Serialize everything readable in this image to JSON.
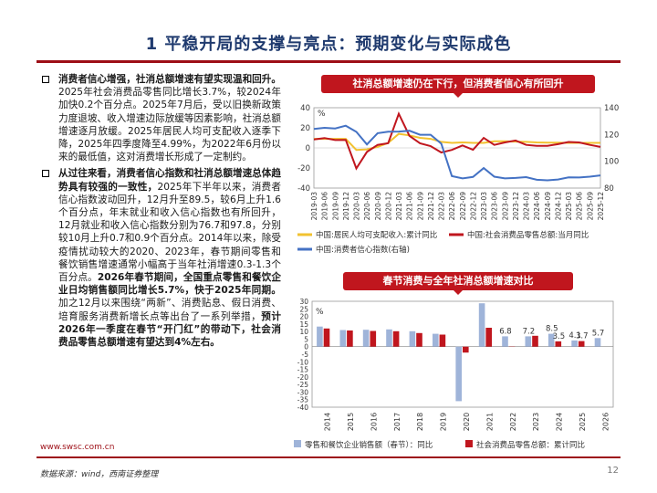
{
  "title": "1 平稳开局的支撑与亮点：预期变化与实际成色",
  "paragraphs": [
    {
      "lead": "消费者信心增强，社消总额增速有望实现温和回升。",
      "body": "2025年社会消费品零售同比增长3.7%，较2024年加快0.2个百分点。2025年7月后，受以旧换新政策力度退坡、收入增速边际放缓等因素影响，社消总额增速逐月放缓。2025年居民人均可支配收入逐季下降，2025年四季度降至4.99%，为2022年6月份以来的最低值，这对消费增长形成了一定制约。"
    },
    {
      "lead": "从过往来看，消费者信心指数和社消总额增速总体趋势具有较强的一致性，",
      "body": "2025年下半年以来，消费者信心指数波动回升，12月升至89.5，较6月上升1.6个百分点，年末就业和收入信心指数也有所回升，12月就业和收入信心指数分别为76.7和97.8，分别较10月上升0.7和0.9个百分点。2014年以来，除受疫情扰动较大的2020、2023年，春节期间零售和餐饮销售增速通常小幅高于当年社消增速0.3-1.3个百分点。",
      "bold2": "2026年春节期间，全国重点零售和餐饮企业日均销售额同比增长5.7%，快于2025年同期。",
      "body2": "加之12月以来围绕“两新”、消费贴息、假日消费、培育服务消费新增长点等出台了一系列举措，",
      "bold3": "预计2026年一季度在春节“开门红”的带动下，社会消费品零售总额增速有望达到4%左右。"
    }
  ],
  "footer": {
    "url": "www.swsc.com.cn",
    "source": "数据来源：wind，西南证券整理",
    "page": "12"
  },
  "colors": {
    "accent": "#c0161e",
    "title": "#1f3a6e",
    "yellow": "#f2c230",
    "blue": "#4472c4",
    "bar_blue": "#9fb4d9",
    "bar_red": "#c0161e"
  },
  "chart_data": [
    {
      "type": "line",
      "title": "社消总额增速仍在下行，但消费者信心有所回升",
      "ylabel_left": "%",
      "ylim_left": [
        -40,
        40
      ],
      "ylim_right": [
        80,
        140
      ],
      "yticks_left": [
        "40",
        "20",
        "0",
        "-20",
        "-40"
      ],
      "yticks_right": [
        "140",
        "120",
        "100",
        "80"
      ],
      "xtick_labels": [
        "2019-03",
        "2019-06",
        "2019-09",
        "2019-12",
        "2020-03",
        "2020-06",
        "2020-09",
        "2020-12",
        "2021-03",
        "2021-06",
        "2021-09",
        "2021-12",
        "2022-03",
        "2022-06",
        "2022-09",
        "2022-12",
        "2023-03",
        "2023-06",
        "2023-09",
        "2023-12",
        "2024-03",
        "2024-06",
        "2024-09",
        "2024-12",
        "2025-03",
        "2025-06",
        "2025-09",
        "2025-12"
      ],
      "series": [
        {
          "name": "中国:居民人均可支配收入:累计同比",
          "axis": "left",
          "color": "#f2c230",
          "values": [
            9.0,
            9.0,
            9.0,
            9.0,
            -2.0,
            -1.5,
            1.0,
            5.0,
            14.0,
            12.5,
            10.0,
            9.0,
            6.0,
            5.0,
            5.5,
            5.0,
            5.0,
            6.5,
            6.5,
            6.3,
            6.0,
            5.5,
            5.2,
            5.3,
            5.0,
            5.0,
            5.0,
            5.0
          ]
        },
        {
          "name": "中国:社会消费品零售总额:当月同比",
          "axis": "left",
          "color": "#c0161e",
          "values": [
            8.5,
            9.8,
            7.8,
            8.0,
            -20.5,
            -4.0,
            3.0,
            4.6,
            34.0,
            12.0,
            4.5,
            1.8,
            -4.5,
            -2.0,
            2.5,
            -1.8,
            10.0,
            3.0,
            5.5,
            7.4,
            3.0,
            2.0,
            2.1,
            3.7,
            5.9,
            5.5,
            3.0,
            1.0
          ]
        },
        {
          "name": "中国:消费者信心指数(右轴)",
          "axis": "right",
          "color": "#4472c4",
          "values": [
            124.1,
            125.0,
            124.5,
            126.6,
            122.0,
            112.6,
            121.0,
            122.1,
            122.2,
            122.8,
            119.8,
            119.8,
            113.2,
            88.9,
            87.2,
            88.3,
            94.9,
            88.5,
            87.2,
            87.6,
            88.2,
            86.2,
            85.8,
            86.4,
            88.0,
            87.9,
            88.5,
            89.5
          ]
        }
      ]
    },
    {
      "type": "bar",
      "title": "春节消费与全年社消总额增速对比",
      "ylabel": "%",
      "ylim": [
        -40,
        30
      ],
      "yticks": [
        "30",
        "25",
        "20",
        "15",
        "10",
        "5",
        "0",
        "-5",
        "-10",
        "-15",
        "-20",
        "-25",
        "-30",
        "-35",
        "-40"
      ],
      "categories": [
        "2014",
        "2015",
        "2016",
        "2017",
        "2018",
        "2019",
        "2020",
        "2021",
        "2022",
        "2023",
        "2024",
        "2025",
        "2026"
      ],
      "series": [
        {
          "name": "零售和餐饮企业销售额（春节）：同比",
          "color": "#9fb4d9",
          "values": [
            13.3,
            11.0,
            11.2,
            11.4,
            10.2,
            8.5,
            -36.0,
            28.7,
            6.8,
            6.8,
            8.5,
            4.1,
            5.7
          ]
        },
        {
          "name": "社会消费品零售总额：累计同比",
          "color": "#c0161e",
          "values": [
            12.0,
            10.7,
            10.4,
            10.2,
            9.0,
            8.0,
            -3.9,
            12.5,
            -0.2,
            7.2,
            3.5,
            3.7,
            null
          ]
        }
      ],
      "data_labels": [
        "6.8",
        "7.2",
        "8.5",
        "3.5",
        "4.1",
        "3.7",
        "5.7"
      ]
    }
  ]
}
